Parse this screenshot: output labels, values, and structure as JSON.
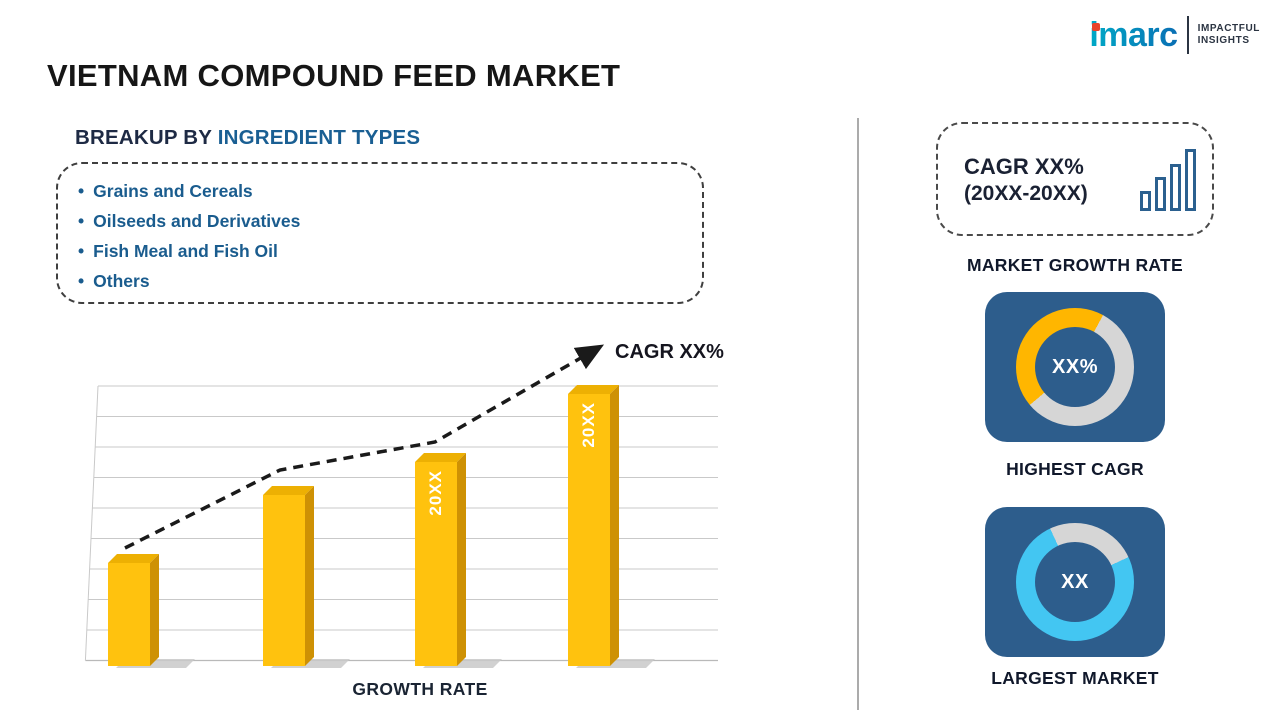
{
  "title": "VIETNAM COMPOUND FEED MARKET",
  "logo": {
    "brand": "imarc",
    "tagline_line1": "IMPACTFUL",
    "tagline_line2": "INSIGHTS"
  },
  "breakup": {
    "heading_prefix": "BREAKUP BY ",
    "heading_highlight": "INGREDIENT TYPES",
    "items": [
      "Grains and Cereals",
      "Oilseeds and Derivatives",
      "Fish Meal and Fish Oil",
      "Others"
    ]
  },
  "chart_data": [
    {
      "type": "bar",
      "title": "",
      "values": [
        38,
        63,
        75,
        100
      ],
      "bar_labels": [
        "",
        "",
        "20XX",
        "20XX"
      ],
      "xlabel": "GROWTH RATE",
      "annotation": "CAGR XX%",
      "bar_color": "#FFC20E",
      "trend": "rising-dashed-arrow",
      "grid": true,
      "ylim": [
        0,
        100
      ],
      "legend": "none"
    },
    {
      "type": "pie",
      "variant": "donut",
      "label": "HIGHEST CAGR",
      "center_text": "XX%",
      "segments": [
        {
          "name": "highlighted",
          "color": "#FFB600",
          "fraction": 0.44
        },
        {
          "name": "remainder",
          "color": "#D6D6D6",
          "fraction": 0.56
        }
      ]
    },
    {
      "type": "pie",
      "variant": "donut",
      "label": "LARGEST MARKET",
      "center_text": "XX",
      "segments": [
        {
          "name": "highlighted",
          "color": "#43C6F2",
          "fraction": 0.75
        },
        {
          "name": "remainder",
          "color": "#D6D6D6",
          "fraction": 0.25
        }
      ]
    }
  ],
  "right_panel": {
    "growth_box": {
      "line1": "CAGR XX%",
      "line2": "(20XX-20XX)"
    },
    "growth_label": "MARKET GROWTH RATE"
  },
  "colors": {
    "card_navy": "#2D5D8C",
    "heading_blue": "#1A5F93",
    "bullet_blue": "#1A5C8E",
    "bar_gold": "#FFC20E",
    "donut_yellow": "#FFB600",
    "donut_cyan": "#43C6F2",
    "donut_gray": "#D6D6D6"
  }
}
